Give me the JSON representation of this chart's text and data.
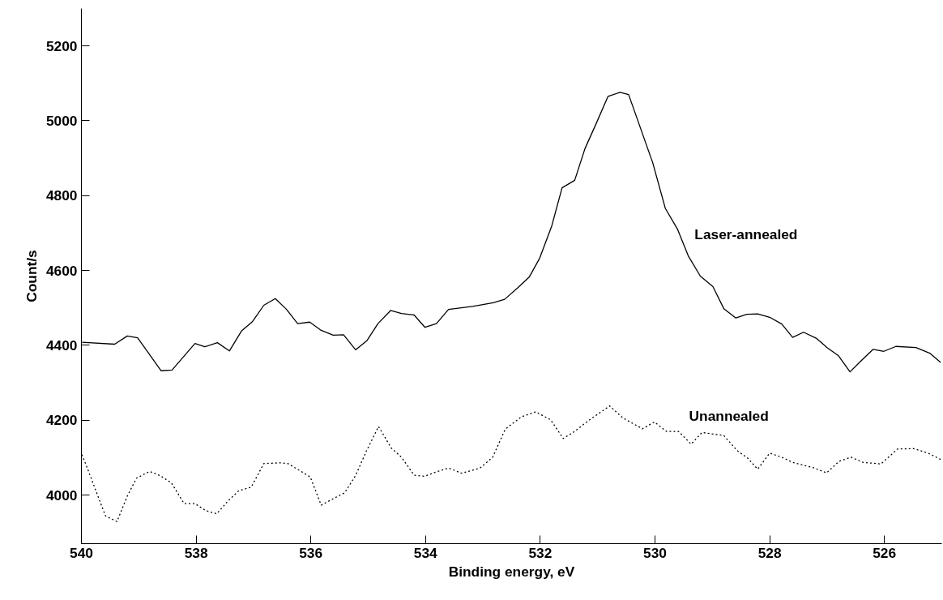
{
  "chart_data": {
    "type": "line",
    "xlabel": "Binding energy, eV",
    "ylabel": "Count/s",
    "xlim": [
      540,
      525
    ],
    "ylim": [
      3870,
      5300
    ],
    "xticks": [
      540,
      538,
      536,
      534,
      532,
      530,
      528,
      526
    ],
    "yticks": [
      4000,
      4200,
      4400,
      4600,
      4800,
      5000,
      5200
    ],
    "grid": false,
    "marker": "none",
    "series": [
      {
        "name": "Laser-annealed",
        "color": "#000000",
        "line_style": "solid",
        "x": [
          539.99,
          539.42,
          539.2,
          539.02,
          538.61,
          538.42,
          538.02,
          537.85,
          537.63,
          537.42,
          537.21,
          537.02,
          536.82,
          536.62,
          536.43,
          536.23,
          536.02,
          535.82,
          535.61,
          535.43,
          535.22,
          535.02,
          534.83,
          534.61,
          534.42,
          534.2,
          534.01,
          533.81,
          533.6,
          533.18,
          532.82,
          532.62,
          532.39,
          532.19,
          532.01,
          531.8,
          531.62,
          531.4,
          531.22,
          531.03,
          530.82,
          530.61,
          530.46,
          530.04,
          529.82,
          529.61,
          529.42,
          529.21,
          528.99,
          528.8,
          528.59,
          528.4,
          528.21,
          528.0,
          527.79,
          527.6,
          527.41,
          527.19,
          527.0,
          526.8,
          526.6,
          526.41,
          526.2,
          526.01,
          525.8,
          525.45,
          525.21,
          525.02
        ],
        "values": [
          4408,
          4403,
          4425,
          4420,
          4332,
          4334,
          4405,
          4396,
          4407,
          4385,
          4438,
          4463,
          4507,
          4525,
          4497,
          4458,
          4462,
          4440,
          4427,
          4428,
          4388,
          4413,
          4458,
          4493,
          4485,
          4481,
          4448,
          4458,
          4496,
          4504,
          4514,
          4523,
          4554,
          4583,
          4633,
          4719,
          4821,
          4841,
          4926,
          4991,
          5065,
          5076,
          5070,
          4888,
          4766,
          4711,
          4639,
          4585,
          4557,
          4498,
          4473,
          4483,
          4484,
          4475,
          4457,
          4421,
          4435,
          4419,
          4394,
          4372,
          4329,
          4358,
          4389,
          4384,
          4397,
          4394,
          4379,
          4354
        ]
      },
      {
        "name": "Unannealed",
        "color": "#000000",
        "line_style": "dotted",
        "x": [
          539.99,
          539.88,
          539.7,
          539.58,
          539.38,
          539.2,
          539.04,
          538.81,
          538.63,
          538.43,
          538.21,
          538.02,
          537.83,
          537.64,
          537.45,
          537.26,
          537.04,
          536.82,
          536.53,
          536.4,
          536.19,
          536.01,
          535.82,
          535.61,
          535.41,
          535.22,
          535.03,
          534.82,
          534.6,
          534.42,
          534.2,
          534.02,
          533.81,
          533.6,
          533.37,
          533.05,
          532.83,
          532.61,
          532.33,
          532.08,
          531.82,
          531.6,
          531.41,
          531.14,
          530.79,
          530.56,
          530.22,
          530.01,
          529.8,
          529.59,
          529.37,
          529.18,
          528.8,
          528.57,
          528.38,
          528.21,
          528.0,
          527.79,
          527.6,
          527.22,
          527.01,
          526.79,
          526.58,
          526.37,
          526.06,
          525.77,
          525.49,
          525.24,
          525.02
        ],
        "values": [
          4108,
          4065,
          3992,
          3944,
          3929,
          3997,
          4045,
          4063,
          4052,
          4032,
          3977,
          3977,
          3958,
          3950,
          3983,
          4011,
          4021,
          4084,
          4086,
          4084,
          4065,
          4048,
          3973,
          3990,
          4006,
          4052,
          4118,
          4183,
          4126,
          4101,
          4053,
          4050,
          4062,
          4072,
          4058,
          4072,
          4101,
          4176,
          4209,
          4222,
          4201,
          4151,
          4169,
          4201,
          4238,
          4206,
          4177,
          4195,
          4170,
          4170,
          4136,
          4167,
          4159,
          4119,
          4098,
          4069,
          4112,
          4101,
          4087,
          4072,
          4059,
          4090,
          4101,
          4087,
          4083,
          4123,
          4124,
          4112,
          4095
        ]
      }
    ]
  }
}
